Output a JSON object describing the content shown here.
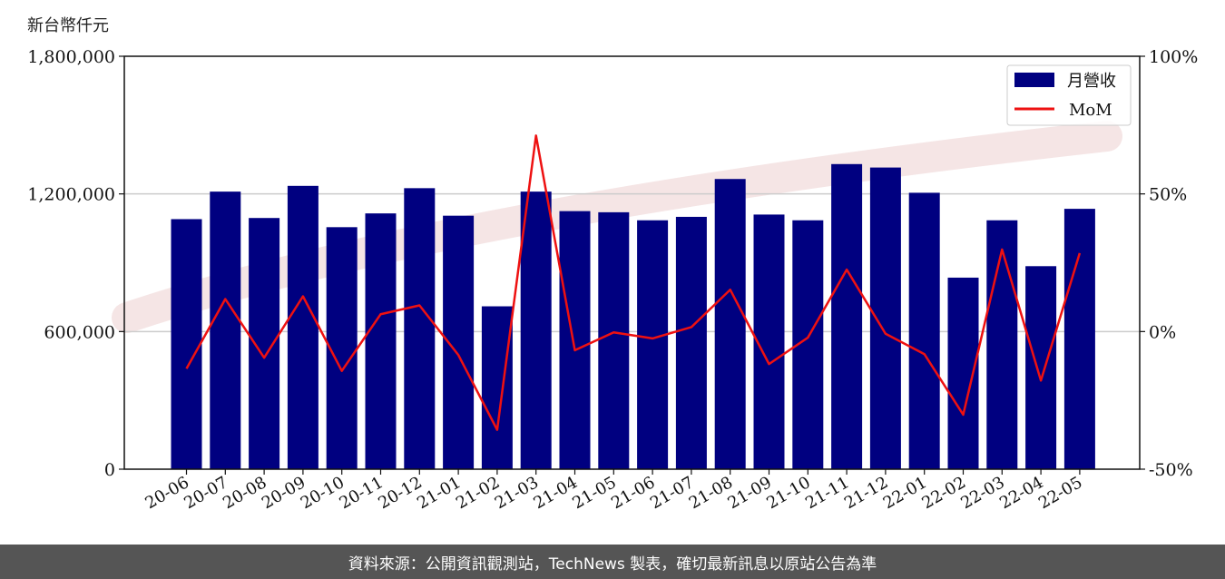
{
  "unit_label": "新台幣仟元",
  "footer_text": "資料來源：公開資訊觀測站，TechNews 製表，確切最新訊息以原站公告為準",
  "colors": {
    "bar": "#000080",
    "line": "#ee1111",
    "grid": "#cccccc",
    "watermark": "#f2dede",
    "footer_bg": "#555555"
  },
  "chart_data": {
    "type": "bar",
    "categories": [
      "20-06",
      "20-07",
      "20-08",
      "20-09",
      "20-10",
      "20-11",
      "20-12",
      "21-01",
      "21-02",
      "21-03",
      "21-04",
      "21-05",
      "21-06",
      "21-07",
      "21-08",
      "21-09",
      "21-10",
      "21-11",
      "21-12",
      "22-01",
      "22-02",
      "22-03",
      "22-04",
      "22-05"
    ],
    "series": [
      {
        "name": "月營收",
        "type": "bar",
        "axis": "left",
        "values": [
          1090000,
          1210000,
          1095000,
          1235000,
          1055000,
          1115000,
          1225000,
          1105000,
          710000,
          1210000,
          1125000,
          1120000,
          1085000,
          1100000,
          1265000,
          1110000,
          1085000,
          1330000,
          1315000,
          1205000,
          835000,
          1085000,
          885000,
          1135000
        ]
      },
      {
        "name": "MoM",
        "type": "line",
        "axis": "right",
        "values": [
          -0.135,
          0.118,
          -0.095,
          0.128,
          -0.143,
          0.063,
          0.095,
          -0.085,
          -0.357,
          0.712,
          -0.068,
          -0.003,
          -0.025,
          0.016,
          0.152,
          -0.118,
          -0.022,
          0.225,
          -0.008,
          -0.082,
          -0.302,
          0.298,
          -0.178,
          0.285
        ]
      }
    ],
    "y_left": {
      "min": 0,
      "max": 1800000,
      "ticks": [
        0,
        600000,
        1200000,
        1800000
      ],
      "tick_labels": [
        "0",
        "600,000",
        "1,200,000",
        "1,800,000"
      ]
    },
    "y_right": {
      "min": -0.5,
      "max": 1.0,
      "ticks": [
        -0.5,
        0,
        0.5,
        1.0
      ],
      "tick_labels": [
        "-50%",
        "0%",
        "50%",
        "100%"
      ]
    },
    "grid": "horizontal",
    "legend_position": "top-right"
  }
}
